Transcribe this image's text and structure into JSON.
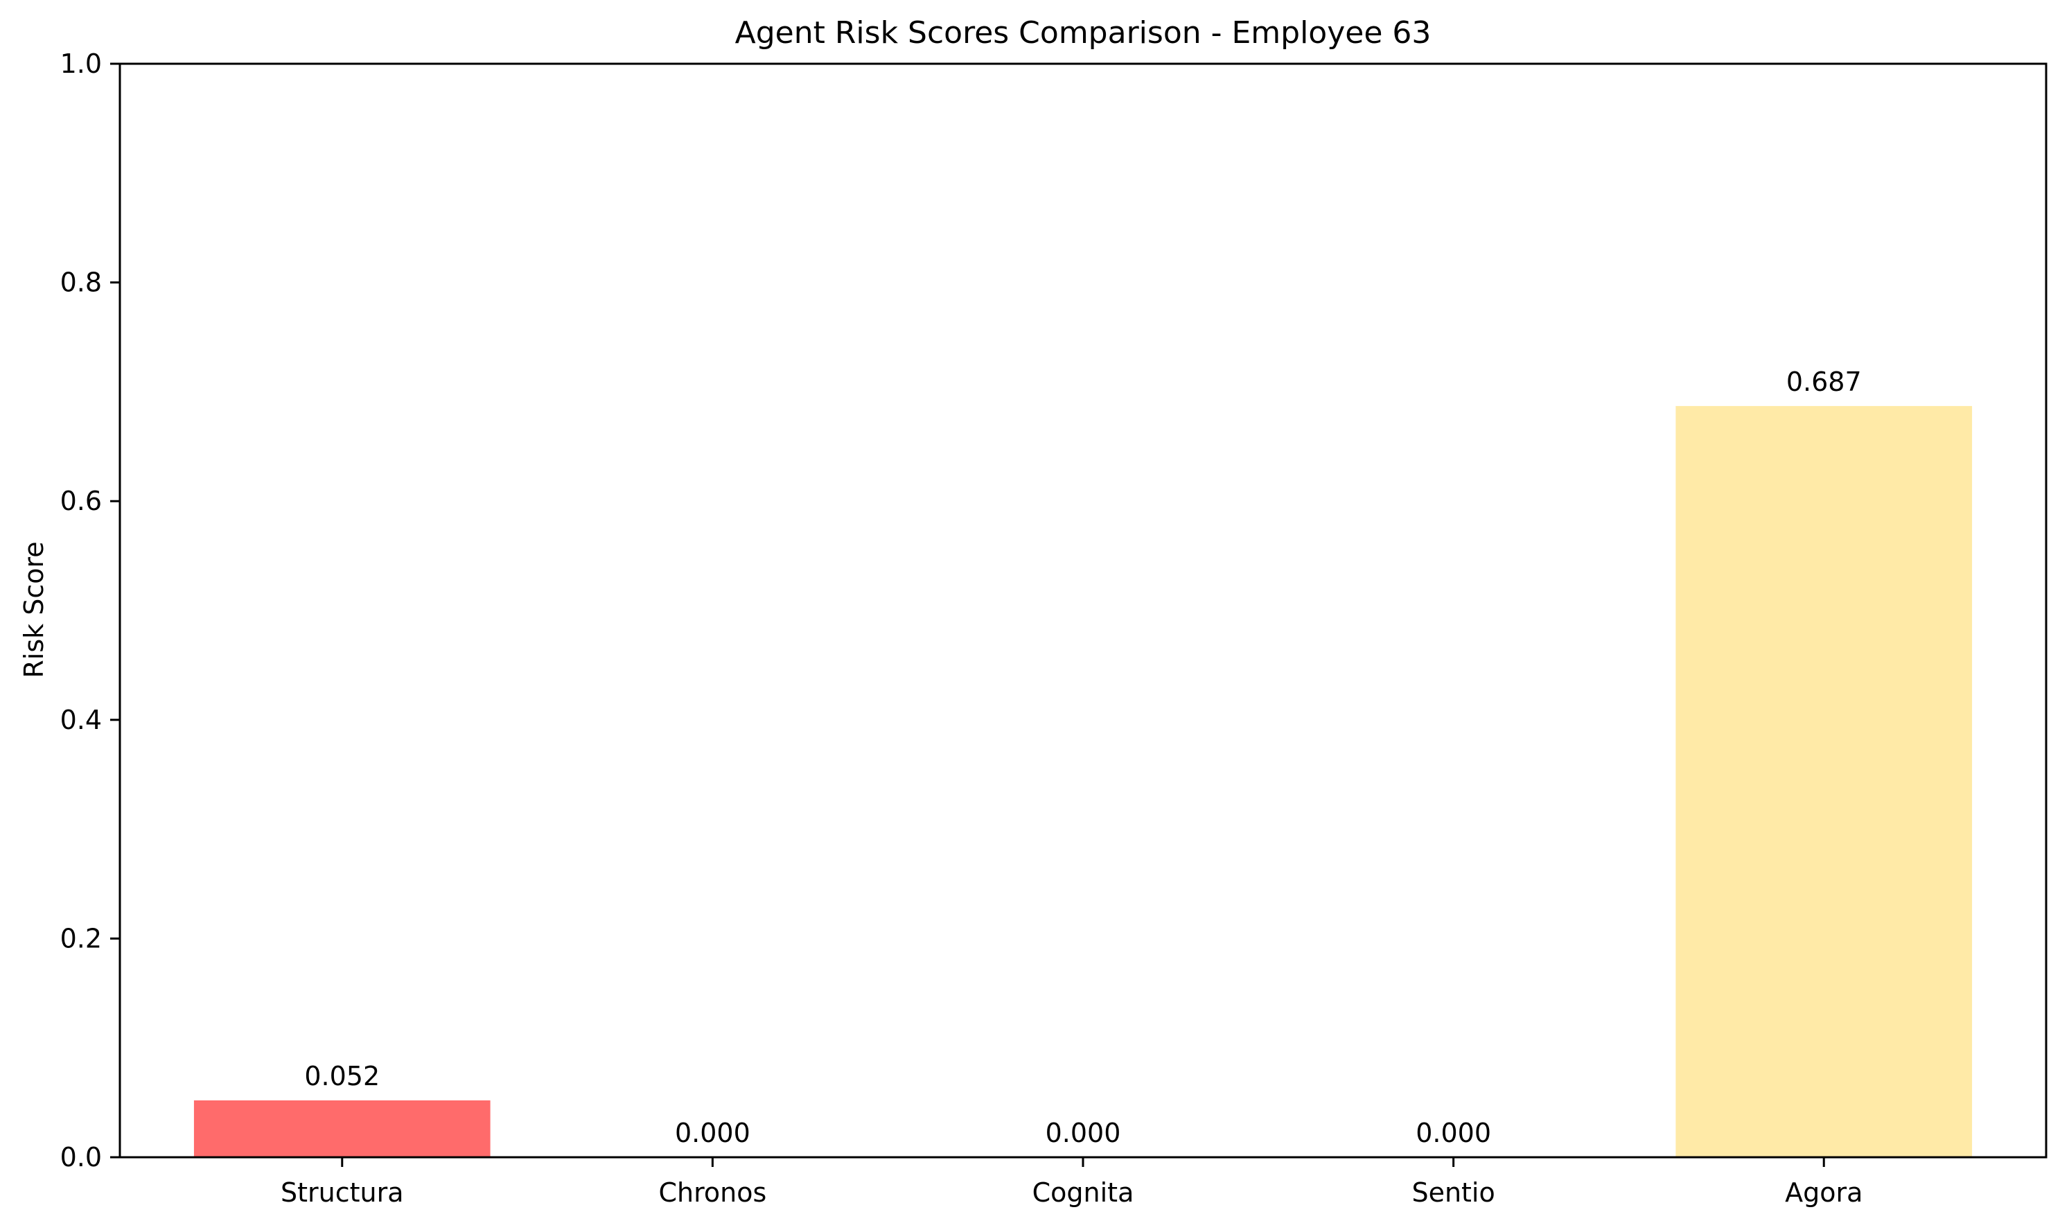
{
  "chart_data": {
    "type": "bar",
    "title": "Agent Risk Scores Comparison - Employee 63",
    "xlabel": "",
    "ylabel": "Risk Score",
    "categories": [
      "Structura",
      "Chronos",
      "Cognita",
      "Sentio",
      "Agora"
    ],
    "values": [
      0.052,
      0.0,
      0.0,
      0.0,
      0.687
    ],
    "value_labels": [
      "0.052",
      "0.000",
      "0.000",
      "0.000",
      "0.687"
    ],
    "bar_colors": [
      "#ff6b6b",
      "#4ecdc4",
      "#45b7d1",
      "#96ceb4",
      "#ffeaa7"
    ],
    "ylim": [
      0,
      1.0
    ],
    "yticks": [
      0.0,
      0.2,
      0.4,
      0.6,
      0.8,
      1.0
    ],
    "ytick_labels": [
      "0.0",
      "0.2",
      "0.4",
      "0.6",
      "0.8",
      "1.0"
    ],
    "grid": false,
    "legend": "none"
  }
}
